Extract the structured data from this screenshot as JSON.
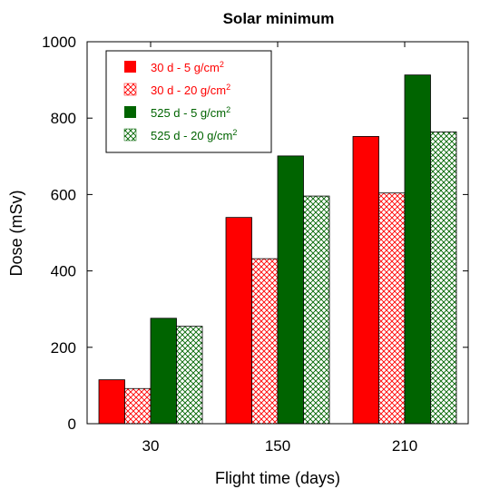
{
  "chart_data": {
    "type": "bar",
    "title": "Solar minimum",
    "xlabel": "Flight time (days)",
    "ylabel": "Dose (mSv)",
    "categories": [
      "30",
      "150",
      "210"
    ],
    "ylim": [
      0,
      1000
    ],
    "yticks": [
      0,
      200,
      400,
      600,
      800,
      1000
    ],
    "grid": false,
    "legend_position": "top-left",
    "series": [
      {
        "name": "30 d - 5 g/cm",
        "sup": "2",
        "color": "#ff0000",
        "pattern": "solid",
        "values": [
          115,
          540,
          752
        ]
      },
      {
        "name": "30 d - 20 g/cm",
        "sup": "2",
        "color": "#ff0000",
        "pattern": "crosshatch",
        "values": [
          92,
          432,
          604
        ]
      },
      {
        "name": "525 d - 5 g/cm",
        "sup": "2",
        "color": "#006400",
        "pattern": "solid",
        "values": [
          276,
          701,
          913
        ]
      },
      {
        "name": "525 d - 20 g/cm",
        "sup": "2",
        "color": "#006400",
        "pattern": "crosshatch",
        "values": [
          255,
          596,
          764
        ]
      }
    ]
  }
}
